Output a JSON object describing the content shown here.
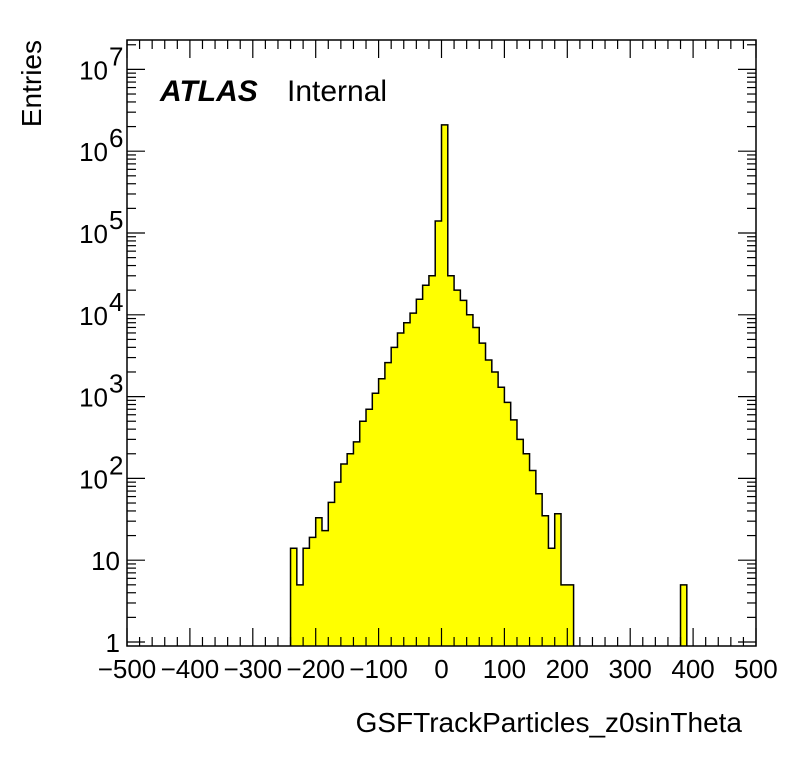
{
  "chart_data": {
    "type": "bar",
    "xlabel": "GSFTrackParticles_z0sinTheta",
    "ylabel": "Entries",
    "atlas_label": "ATLAS",
    "atlas_status": "Internal",
    "xlim": [
      -500,
      500
    ],
    "ylim": [
      1,
      20000000
    ],
    "yscale": "log",
    "bin_width": 10,
    "fill_color": "#ffff00",
    "line_color": "#000000",
    "x_ticks": [
      -500,
      -400,
      -300,
      -200,
      -100,
      0,
      100,
      200,
      300,
      400,
      500
    ],
    "x_tick_labels": [
      "−500",
      "−400",
      "−300",
      "−200",
      "−100",
      "0",
      "100",
      "200",
      "300",
      "400",
      "500"
    ],
    "y_tick_labels": [
      {
        "value": 1,
        "base": "1",
        "exp": ""
      },
      {
        "value": 10,
        "base": "10",
        "exp": ""
      },
      {
        "value": 100,
        "base": "10",
        "exp": "2"
      },
      {
        "value": 1000,
        "base": "10",
        "exp": "3"
      },
      {
        "value": 10000,
        "base": "10",
        "exp": "4"
      },
      {
        "value": 100000,
        "base": "10",
        "exp": "5"
      },
      {
        "value": 1000000,
        "base": "10",
        "exp": "6"
      },
      {
        "value": 10000000,
        "base": "10",
        "exp": "7"
      }
    ],
    "bins": [
      {
        "x": -240,
        "y": 14
      },
      {
        "x": -230,
        "y": 5
      },
      {
        "x": -220,
        "y": 14
      },
      {
        "x": -210,
        "y": 19
      },
      {
        "x": -200,
        "y": 33
      },
      {
        "x": -190,
        "y": 23
      },
      {
        "x": -180,
        "y": 51
      },
      {
        "x": -170,
        "y": 90
      },
      {
        "x": -160,
        "y": 150
      },
      {
        "x": -150,
        "y": 200
      },
      {
        "x": -140,
        "y": 280
      },
      {
        "x": -130,
        "y": 500
      },
      {
        "x": -120,
        "y": 700
      },
      {
        "x": -110,
        "y": 1100
      },
      {
        "x": -100,
        "y": 1650
      },
      {
        "x": -90,
        "y": 2600
      },
      {
        "x": -80,
        "y": 4000
      },
      {
        "x": -70,
        "y": 6000
      },
      {
        "x": -60,
        "y": 8000
      },
      {
        "x": -50,
        "y": 10500
      },
      {
        "x": -40,
        "y": 15500
      },
      {
        "x": -30,
        "y": 23000
      },
      {
        "x": -20,
        "y": 30000
      },
      {
        "x": -10,
        "y": 140000
      },
      {
        "x": 0,
        "y": 2100000
      },
      {
        "x": 10,
        "y": 30000
      },
      {
        "x": 20,
        "y": 20000
      },
      {
        "x": 30,
        "y": 15000
      },
      {
        "x": 40,
        "y": 10000
      },
      {
        "x": 50,
        "y": 7000
      },
      {
        "x": 60,
        "y": 4500
      },
      {
        "x": 70,
        "y": 2800
      },
      {
        "x": 80,
        "y": 2000
      },
      {
        "x": 90,
        "y": 1300
      },
      {
        "x": 100,
        "y": 850
      },
      {
        "x": 110,
        "y": 520
      },
      {
        "x": 120,
        "y": 300
      },
      {
        "x": 130,
        "y": 200
      },
      {
        "x": 140,
        "y": 125
      },
      {
        "x": 150,
        "y": 65
      },
      {
        "x": 160,
        "y": 35
      },
      {
        "x": 170,
        "y": 14
      },
      {
        "x": 180,
        "y": 37
      },
      {
        "x": 190,
        "y": 5
      },
      {
        "x": 200,
        "y": 5
      },
      {
        "x": 380,
        "y": 5
      }
    ]
  }
}
